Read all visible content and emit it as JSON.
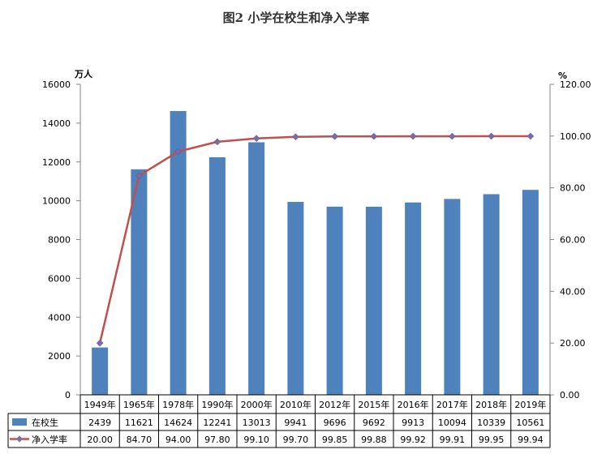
{
  "chart_data": {
    "type": "bar+line",
    "title": "图2  小学在校生和净入学率",
    "categories": [
      "1949年",
      "1965年",
      "1978年",
      "1990年",
      "2000年",
      "2010年",
      "2012年",
      "2015年",
      "2016年",
      "2017年",
      "2018年",
      "2019年"
    ],
    "series": [
      {
        "name": "在校生",
        "type": "bar",
        "axis": "left",
        "values": [
          2439,
          11621,
          14624,
          12241,
          13013,
          9941,
          9696,
          9692,
          9913,
          10094,
          10339,
          10561
        ],
        "labels": [
          "2439",
          "11621",
          "14624",
          "12241",
          "13013",
          "9941",
          "9696",
          "9692",
          "9913",
          "10094",
          "10339",
          "10561"
        ],
        "color": "#4F81BD"
      },
      {
        "name": "净入学率",
        "type": "line",
        "axis": "right",
        "values": [
          20.0,
          84.7,
          94.0,
          97.8,
          99.1,
          99.7,
          99.85,
          99.88,
          99.92,
          99.91,
          99.95,
          99.94
        ],
        "labels": [
          "20.00",
          "84.70",
          "94.00",
          "97.80",
          "99.10",
          "99.70",
          "99.85",
          "99.88",
          "99.92",
          "99.91",
          "99.95",
          "99.94"
        ],
        "color": "#C0504D",
        "marker_color": "#7B6AA6"
      }
    ],
    "y_left": {
      "unit": "万人",
      "range": [
        0,
        16000
      ],
      "ticks": [
        "0",
        "2000",
        "4000",
        "6000",
        "8000",
        "10000",
        "12000",
        "14000",
        "16000"
      ]
    },
    "y_right": {
      "unit": "%",
      "range": [
        0,
        120
      ],
      "ticks": [
        "0.00",
        "20.00",
        "40.00",
        "60.00",
        "80.00",
        "100.00",
        "120.00"
      ]
    },
    "grid": false,
    "legend": "data-table-below"
  }
}
